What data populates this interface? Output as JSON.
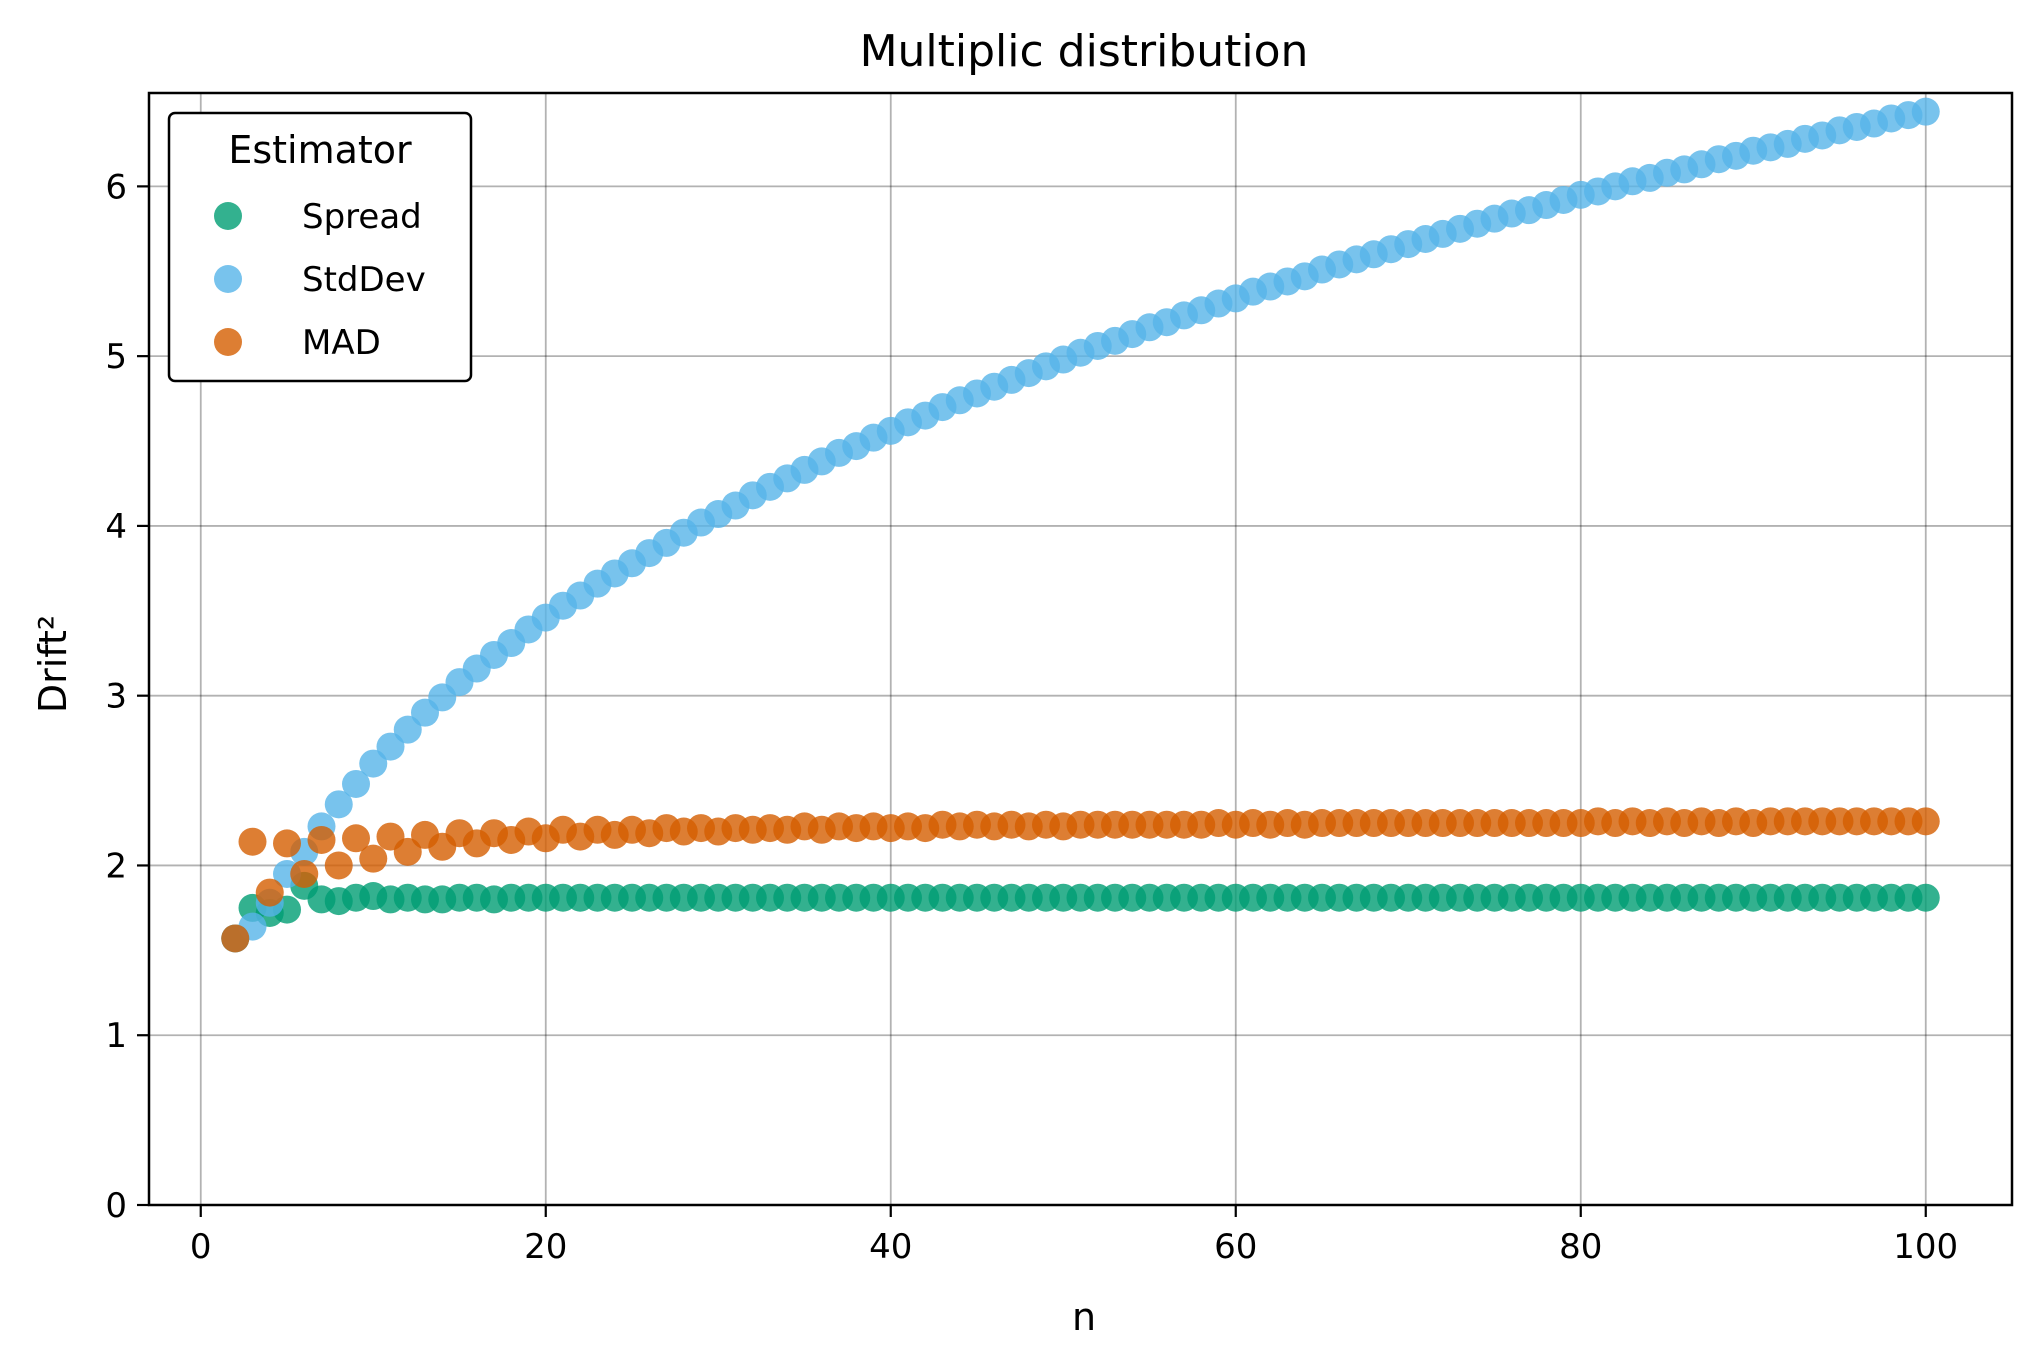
{
  "chart_data": {
    "type": "scatter",
    "title": "Multiplic distribution",
    "xlabel": "n",
    "ylabel": "Drift²",
    "xlim": [
      -3,
      105
    ],
    "ylim": [
      0,
      6.55
    ],
    "xticks": [
      0,
      20,
      40,
      60,
      80,
      100
    ],
    "yticks": [
      0,
      1,
      2,
      3,
      4,
      5,
      6
    ],
    "grid": true,
    "legend": {
      "title": "Estimator",
      "position": "top-left"
    },
    "x": [
      2,
      3,
      4,
      5,
      6,
      7,
      8,
      9,
      10,
      11,
      12,
      13,
      14,
      15,
      16,
      17,
      18,
      19,
      20,
      21,
      22,
      23,
      24,
      25,
      26,
      27,
      28,
      29,
      30,
      31,
      32,
      33,
      34,
      35,
      36,
      37,
      38,
      39,
      40,
      41,
      42,
      43,
      44,
      45,
      46,
      47,
      48,
      49,
      50,
      51,
      52,
      53,
      54,
      55,
      56,
      57,
      58,
      59,
      60,
      61,
      62,
      63,
      64,
      65,
      66,
      67,
      68,
      69,
      70,
      71,
      72,
      73,
      74,
      75,
      76,
      77,
      78,
      79,
      80,
      81,
      82,
      83,
      84,
      85,
      86,
      87,
      88,
      89,
      90,
      91,
      92,
      93,
      94,
      95,
      96,
      97,
      98,
      99,
      100
    ],
    "series": [
      {
        "name": "Spread",
        "color": "#009E73",
        "values": [
          1.57,
          1.75,
          1.72,
          1.74,
          1.88,
          1.8,
          1.79,
          1.81,
          1.82,
          1.8,
          1.81,
          1.8,
          1.8,
          1.81,
          1.81,
          1.8,
          1.81,
          1.81,
          1.81,
          1.81,
          1.81,
          1.81,
          1.81,
          1.81,
          1.81,
          1.81,
          1.81,
          1.81,
          1.81,
          1.81,
          1.81,
          1.81,
          1.81,
          1.81,
          1.81,
          1.81,
          1.81,
          1.81,
          1.81,
          1.81,
          1.81,
          1.81,
          1.81,
          1.81,
          1.81,
          1.81,
          1.81,
          1.81,
          1.81,
          1.81,
          1.81,
          1.81,
          1.81,
          1.81,
          1.81,
          1.81,
          1.81,
          1.81,
          1.81,
          1.81,
          1.81,
          1.81,
          1.81,
          1.81,
          1.81,
          1.81,
          1.81,
          1.81,
          1.81,
          1.81,
          1.81,
          1.81,
          1.81,
          1.81,
          1.81,
          1.81,
          1.81,
          1.81,
          1.81,
          1.81,
          1.81,
          1.81,
          1.81,
          1.81,
          1.81,
          1.81,
          1.81,
          1.81,
          1.81,
          1.81,
          1.81,
          1.81,
          1.81,
          1.81,
          1.81,
          1.81,
          1.81,
          1.81,
          1.81
        ]
      },
      {
        "name": "StdDev",
        "color": "#56B4E9",
        "values": [
          1.57,
          1.64,
          1.78,
          1.95,
          2.08,
          2.23,
          2.36,
          2.48,
          2.6,
          2.7,
          2.8,
          2.9,
          2.99,
          3.08,
          3.16,
          3.24,
          3.31,
          3.39,
          3.46,
          3.53,
          3.59,
          3.66,
          3.72,
          3.78,
          3.84,
          3.9,
          3.96,
          4.02,
          4.07,
          4.12,
          4.18,
          4.23,
          4.28,
          4.33,
          4.38,
          4.43,
          4.47,
          4.52,
          4.56,
          4.61,
          4.65,
          4.7,
          4.74,
          4.78,
          4.82,
          4.86,
          4.9,
          4.94,
          4.98,
          5.02,
          5.06,
          5.09,
          5.13,
          5.17,
          5.2,
          5.24,
          5.27,
          5.31,
          5.34,
          5.38,
          5.41,
          5.44,
          5.47,
          5.51,
          5.54,
          5.57,
          5.6,
          5.63,
          5.66,
          5.69,
          5.72,
          5.75,
          5.78,
          5.81,
          5.84,
          5.86,
          5.89,
          5.92,
          5.95,
          5.97,
          6.0,
          6.03,
          6.05,
          6.08,
          6.1,
          6.13,
          6.16,
          6.18,
          6.21,
          6.23,
          6.25,
          6.28,
          6.3,
          6.33,
          6.35,
          6.37,
          6.4,
          6.42,
          6.44
        ]
      },
      {
        "name": "MAD",
        "color": "#D55E00",
        "values": [
          1.57,
          2.14,
          1.84,
          2.13,
          1.95,
          2.15,
          2.0,
          2.16,
          2.04,
          2.17,
          2.08,
          2.18,
          2.11,
          2.19,
          2.13,
          2.19,
          2.15,
          2.2,
          2.16,
          2.21,
          2.17,
          2.21,
          2.18,
          2.21,
          2.19,
          2.22,
          2.2,
          2.22,
          2.2,
          2.22,
          2.21,
          2.22,
          2.21,
          2.23,
          2.21,
          2.23,
          2.22,
          2.23,
          2.22,
          2.23,
          2.22,
          2.24,
          2.23,
          2.24,
          2.23,
          2.24,
          2.23,
          2.24,
          2.23,
          2.24,
          2.24,
          2.24,
          2.24,
          2.24,
          2.24,
          2.24,
          2.24,
          2.25,
          2.24,
          2.25,
          2.24,
          2.25,
          2.24,
          2.25,
          2.25,
          2.25,
          2.25,
          2.25,
          2.25,
          2.25,
          2.25,
          2.25,
          2.25,
          2.25,
          2.25,
          2.25,
          2.25,
          2.25,
          2.25,
          2.26,
          2.25,
          2.26,
          2.25,
          2.26,
          2.25,
          2.26,
          2.25,
          2.26,
          2.25,
          2.26,
          2.26,
          2.26,
          2.26,
          2.26,
          2.26,
          2.26,
          2.26,
          2.26,
          2.26
        ]
      }
    ]
  }
}
